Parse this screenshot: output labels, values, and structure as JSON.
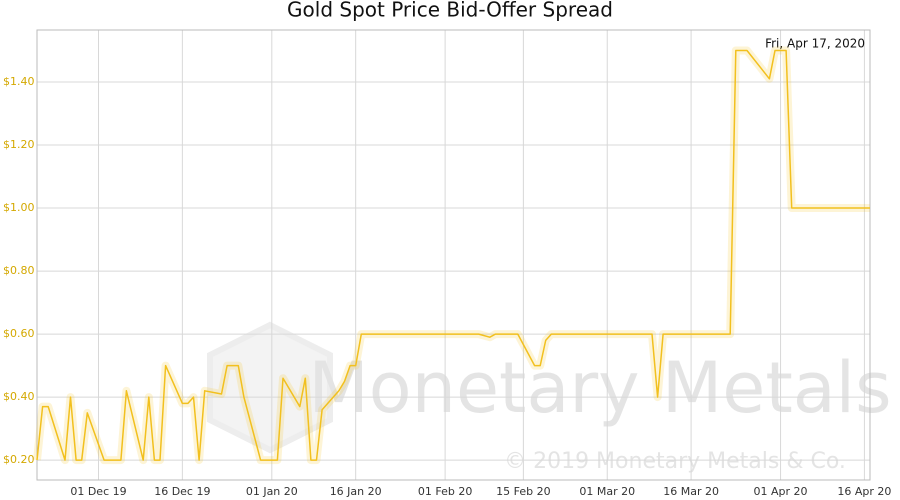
{
  "chart_data": {
    "type": "line",
    "title": "Gold Spot Price Bid-Offer Spread",
    "annotation": "Fri, Apr 17, 2020",
    "watermark": "Monetary Metals",
    "copyright": "© 2019 Monetary Metals & Co.",
    "x": [
      "2019-11-20",
      "2019-11-21",
      "2019-11-22",
      "2019-11-25",
      "2019-11-26",
      "2019-11-27",
      "2019-11-28",
      "2019-11-29",
      "2019-12-02",
      "2019-12-05",
      "2019-12-06",
      "2019-12-09",
      "2019-12-10",
      "2019-12-11",
      "2019-12-12",
      "2019-12-13",
      "2019-12-16",
      "2019-12-17",
      "2019-12-18",
      "2019-12-19",
      "2019-12-20",
      "2019-12-23",
      "2019-12-24",
      "2019-12-26",
      "2019-12-27",
      "2019-12-30",
      "2020-01-02",
      "2020-01-03",
      "2020-01-06",
      "2020-01-07",
      "2020-01-08",
      "2020-01-09",
      "2020-01-10",
      "2020-01-13",
      "2020-01-14",
      "2020-01-15",
      "2020-01-16",
      "2020-01-17",
      "2020-01-24",
      "2020-02-03",
      "2020-02-07",
      "2020-02-09",
      "2020-02-10",
      "2020-02-14",
      "2020-02-17",
      "2020-02-18",
      "2020-02-19",
      "2020-02-20",
      "2020-03-09",
      "2020-03-10",
      "2020-03-11",
      "2020-03-23",
      "2020-03-24",
      "2020-03-26",
      "2020-03-30",
      "2020-03-31",
      "2020-04-02",
      "2020-04-03",
      "2020-04-17"
    ],
    "series": [
      {
        "name": "Spread",
        "color": "#f2c01e",
        "values": [
          0.2,
          0.37,
          0.37,
          0.2,
          0.4,
          0.2,
          0.2,
          0.35,
          0.2,
          0.2,
          0.42,
          0.2,
          0.4,
          0.2,
          0.2,
          0.5,
          0.38,
          0.38,
          0.4,
          0.2,
          0.42,
          0.41,
          0.5,
          0.5,
          0.4,
          0.2,
          0.2,
          0.46,
          0.37,
          0.46,
          0.2,
          0.2,
          0.36,
          0.42,
          0.45,
          0.5,
          0.5,
          0.6,
          0.6,
          0.6,
          0.6,
          0.59,
          0.6,
          0.6,
          0.5,
          0.5,
          0.58,
          0.6,
          0.6,
          0.4,
          0.6,
          0.6,
          1.5,
          1.5,
          1.41,
          1.5,
          1.5,
          1.0,
          1.0
        ]
      }
    ],
    "xlim": [
      "2019-11-20",
      "2020-04-17"
    ],
    "xticks": [
      {
        "value": "2019-12-01",
        "label": "01 Dec 19"
      },
      {
        "value": "2019-12-16",
        "label": "16 Dec 19"
      },
      {
        "value": "2020-01-01",
        "label": "01 Jan 20"
      },
      {
        "value": "2020-01-16",
        "label": "16 Jan 20"
      },
      {
        "value": "2020-02-01",
        "label": "01 Feb 20"
      },
      {
        "value": "2020-02-15",
        "label": "15 Feb 20"
      },
      {
        "value": "2020-03-01",
        "label": "01 Mar 20"
      },
      {
        "value": "2020-03-16",
        "label": "16 Mar 20"
      },
      {
        "value": "2020-04-01",
        "label": "01 Apr 20"
      },
      {
        "value": "2020-04-16",
        "label": "16 Apr 20"
      }
    ],
    "ylim": [
      0.137,
      1.565
    ],
    "yticks": [
      {
        "value": 0.2,
        "label": "$0.20"
      },
      {
        "value": 0.4,
        "label": "$0.40"
      },
      {
        "value": 0.6,
        "label": "$0.60"
      },
      {
        "value": 0.8,
        "label": "$0.80"
      },
      {
        "value": 1.0,
        "label": "$1.00"
      },
      {
        "value": 1.2,
        "label": "$1.20"
      },
      {
        "value": 1.4,
        "label": "$1.40"
      }
    ],
    "grid": true
  }
}
